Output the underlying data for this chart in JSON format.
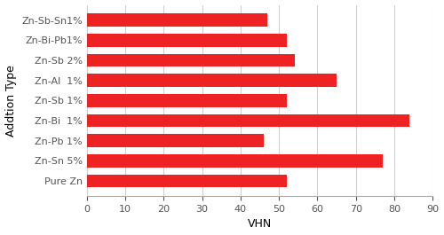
{
  "categories": [
    "Zn-Sb-Sn1%",
    "Zn-Bi-Pb1%",
    "Zn-Sb 2%",
    "Zn-Al  1%",
    "Zn-Sb 1%",
    "Zn-Bi  1%",
    "Zn-Pb 1%",
    "Zn-Sn 5%",
    "Pure Zn"
  ],
  "values": [
    47,
    52,
    54,
    65,
    52,
    84,
    46,
    77,
    52
  ],
  "bar_color": "#ee2222",
  "xlabel": "VHN",
  "ylabel": "Addtion Type",
  "xlim": [
    0,
    90
  ],
  "xticks": [
    0,
    10,
    20,
    30,
    40,
    50,
    60,
    70,
    80,
    90
  ],
  "grid_color": "#d0d0d0",
  "background_color": "#ffffff",
  "bar_height": 0.65,
  "label_fontsize": 8,
  "axis_label_fontsize": 9,
  "ylabel_fontsize": 9
}
